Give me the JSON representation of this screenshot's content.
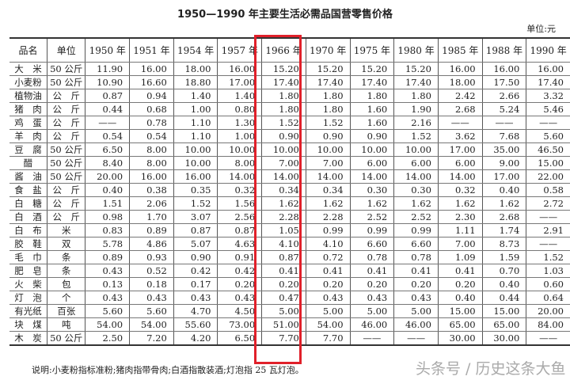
{
  "title": "1950—1990 年主要生活必需品国营零售价格",
  "unit_note": "单位:元",
  "highlight_color": "#e0202a",
  "highlighted_column": "1966 年",
  "headers": [
    "品名",
    "单位",
    "1950 年",
    "1951 年",
    "1954 年",
    "1957 年",
    "1966 年",
    "1970 年",
    "1975 年",
    "1980 年",
    "1985 年",
    "1988 年",
    "1990 年"
  ],
  "rows": [
    [
      "大　米",
      "50 公斤",
      "11.90",
      "16.00",
      "18.00",
      "16.00",
      "15.20",
      "15.20",
      "15.20",
      "15.20",
      "16.00",
      "16.00",
      "16.00"
    ],
    [
      "小麦粉",
      "50 公斤",
      "10.90",
      "16.60",
      "18.80",
      "17.00",
      "17.40",
      "17.40",
      "17.40",
      "17.40",
      "18.00",
      "17.50",
      "17.40"
    ],
    [
      "植物油",
      "公　斤",
      "0.87",
      "0.94",
      "1.40",
      "1.40",
      "1.80",
      "1.80",
      "1.80",
      "1.80",
      "2.42",
      "2.66",
      "3.32"
    ],
    [
      "猪　肉",
      "公　斤",
      "0.44",
      "0.68",
      "1.00",
      "0.80",
      "1.80",
      "1.80",
      "1.60",
      "1.90",
      "2.68",
      "5.24",
      "5.46"
    ],
    [
      "鸡　蛋",
      "公　斤",
      "——",
      "0.78",
      "1.10",
      "1.30",
      "1.52",
      "1.52",
      "1.60",
      "2.16",
      "——",
      "——",
      "——"
    ],
    [
      "羊　肉",
      "公　斤",
      "0.54",
      "0.54",
      "1.10",
      "1.00",
      "0.90",
      "0.90",
      "0.90",
      "1.52",
      "3.62",
      "7.68",
      "5.60"
    ],
    [
      "豆　腐",
      "50 公斤",
      "6.50",
      "8.00",
      "10.00",
      "10.00",
      "10.00",
      "10.00",
      "10.00",
      "10.00",
      "17.00",
      "35.00",
      "46.50"
    ],
    [
      "醋",
      "50 公斤",
      "8.40",
      "8.00",
      "10.00",
      "8.00",
      "7.00",
      "7.00",
      "6.00",
      "6.00",
      "6.00",
      "9.00",
      "15.00"
    ],
    [
      "酱　油",
      "50 公斤",
      "20.00",
      "16.00",
      "16.00",
      "14.00",
      "14.00",
      "14.00",
      "14.00",
      "14.00",
      "14.00",
      "17.00",
      "22.00"
    ],
    [
      "食　盐",
      "公　斤",
      "0.40",
      "0.38",
      "0.35",
      "0.32",
      "0.34",
      "0.34",
      "0.30",
      "0.30",
      "0.32",
      "0.40",
      "0.58"
    ],
    [
      "白　糖",
      "公　斤",
      "1.51",
      "2.06",
      "1.52",
      "1.56",
      "1.62",
      "1.62",
      "1.62",
      "1.62",
      "1.62",
      "1.62",
      "2.72"
    ],
    [
      "白　酒",
      "公　斤",
      "0.98",
      "1.70",
      "3.07",
      "2.56",
      "2.28",
      "2.28",
      "2.52",
      "2.52",
      "2.30",
      "2.68",
      "——"
    ],
    [
      "白　布",
      "米",
      "0.83",
      "0.89",
      "0.87",
      "0.87",
      "1.05",
      "0.99",
      "0.99",
      "0.99",
      "1.11",
      "1.74",
      "2.91"
    ],
    [
      "胶　鞋",
      "双",
      "5.78",
      "4.86",
      "5.07",
      "4.63",
      "4.10",
      "4.10",
      "6.60",
      "6.60",
      "7.00",
      "8.73",
      "——"
    ],
    [
      "毛　巾",
      "条",
      "0.89",
      "0.93",
      "0.90",
      "0.91",
      "0.87",
      "0.72",
      "0.78",
      "0.78",
      "1.09",
      "1.59",
      "1.52"
    ],
    [
      "肥　皂",
      "条",
      "0.43",
      "0.52",
      "0.42",
      "0.42",
      "0.41",
      "0.41",
      "0.41",
      "0.41",
      "0.41",
      "0.70",
      "1.03"
    ],
    [
      "火　柴",
      "包",
      "0.13",
      "0.18",
      "0.17",
      "0.20",
      "0.20",
      "0.20",
      "0.20",
      "0.20",
      "0.20",
      "0.40",
      "0.60"
    ],
    [
      "灯　泡",
      "个",
      "0.43",
      "0.43",
      "0.43",
      "0.43",
      "0.47",
      "0.43",
      "0.43",
      "0.43",
      "0.40",
      "0.44",
      "0.64"
    ],
    [
      "有光纸",
      "百张",
      "5.60",
      "5.60",
      "4.70",
      "4.50",
      "5.00",
      "5.00",
      "5.00",
      "5.00",
      "15.00",
      "15.00",
      "20.00"
    ],
    [
      "块　煤",
      "吨",
      "54.00",
      "54.00",
      "55.60",
      "73.00",
      "51.00",
      "54.00",
      "46.00",
      "46.00",
      "65.00",
      "65.00",
      "84.00"
    ],
    [
      "木　炭",
      "50 公斤",
      "2.50",
      "7.20",
      "4.20",
      "6.50",
      "7.70",
      "7.70",
      "——",
      "——",
      "30.00",
      "30.00",
      "——"
    ]
  ],
  "footnote": "说明:小麦粉指标准粉;猪肉指带骨肉;白酒指散装酒;灯泡指 25 瓦灯泡。",
  "watermark": "头条号 / 历史这条大鱼"
}
